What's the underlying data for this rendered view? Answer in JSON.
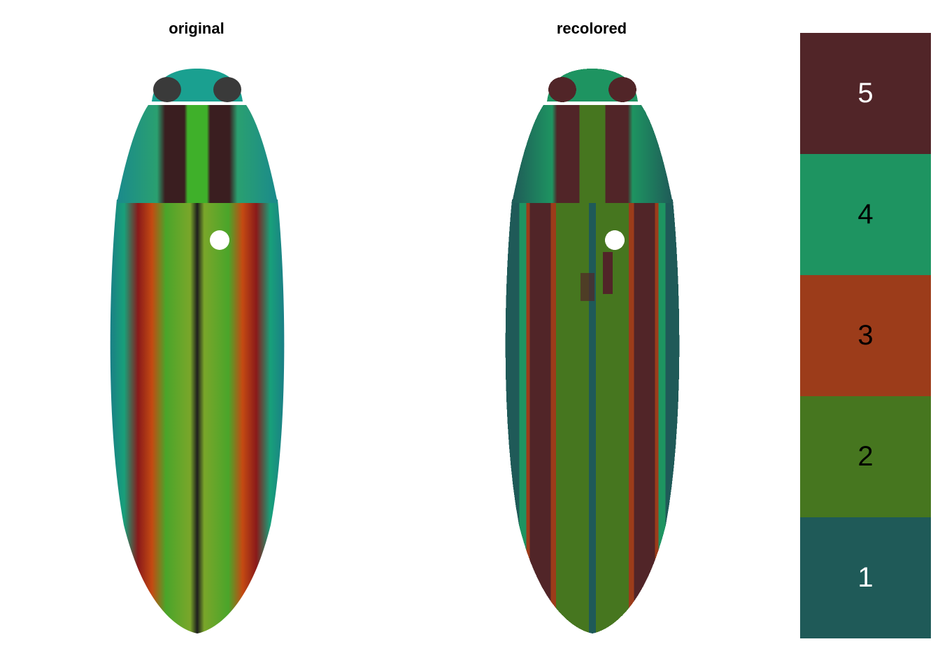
{
  "panels": {
    "original": {
      "title": "original"
    },
    "recolored": {
      "title": "recolored"
    }
  },
  "palette": [
    {
      "label": "5",
      "color": "#512528",
      "text_color": "#ffffff"
    },
    {
      "label": "4",
      "color": "#1e9461",
      "text_color": "#000000"
    },
    {
      "label": "3",
      "color": "#9c3c1a",
      "text_color": "#000000"
    },
    {
      "label": "2",
      "color": "#46761f",
      "text_color": "#000000"
    },
    {
      "label": "1",
      "color": "#1f5a58",
      "text_color": "#ffffff"
    }
  ],
  "colors": {
    "original_edge": "#1a8a8c",
    "original_green": "#3fa52a",
    "original_red": "#8a1a1a",
    "original_head": "#1aa080",
    "eye": "#3a3a3a"
  }
}
